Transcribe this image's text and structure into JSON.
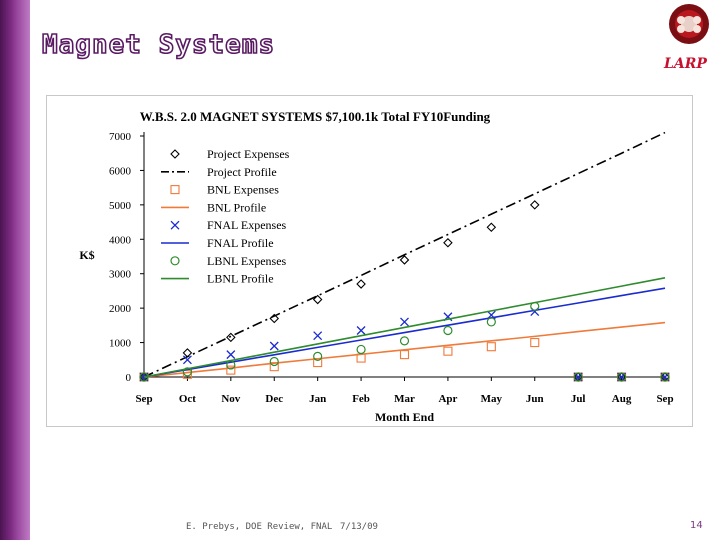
{
  "slide": {
    "title": "Magnet Systems",
    "logo_text": "LARP",
    "footer": {
      "author": "E. Prebys, DOE Review, FNAL",
      "date": "7/13/09",
      "page": "14"
    }
  },
  "chart_data": {
    "type": "line",
    "title": "W.B.S. 2.0 MAGNET SYSTEMS  $7,100.1k Total FY10Funding",
    "xlabel": "Month End",
    "ylabel": "K$",
    "categories": [
      "Sep",
      "Oct",
      "Nov",
      "Dec",
      "Jan",
      "Feb",
      "Mar",
      "Apr",
      "May",
      "Jun",
      "Jul",
      "Aug",
      "Sep"
    ],
    "ylim": [
      0,
      7000
    ],
    "yticks": [
      0,
      1000,
      2000,
      3000,
      4000,
      5000,
      6000,
      7000
    ],
    "series": [
      {
        "name": "Project Expenses",
        "kind": "points",
        "marker": "diamond",
        "color": "#000000",
        "values": [
          0,
          700,
          1150,
          1700,
          2250,
          2700,
          3400,
          3900,
          4350,
          5000,
          0,
          0,
          0
        ]
      },
      {
        "name": "Project Profile",
        "kind": "line",
        "dash": "dashdot",
        "color": "#000000",
        "values": [
          0,
          590,
          1180,
          1770,
          2360,
          2950,
          3550,
          4140,
          4730,
          5320,
          5910,
          6500,
          7100
        ]
      },
      {
        "name": "BNL Expenses",
        "kind": "points",
        "marker": "square",
        "color": "#f07a3a",
        "values": [
          0,
          80,
          200,
          300,
          420,
          550,
          650,
          750,
          880,
          1000,
          0,
          0,
          0
        ]
      },
      {
        "name": "BNL Profile",
        "kind": "line",
        "dash": "solid",
        "color": "#f07a3a",
        "values": [
          0,
          130,
          260,
          400,
          530,
          660,
          790,
          920,
          1050,
          1180,
          1320,
          1450,
          1580
        ]
      },
      {
        "name": "FNAL Expenses",
        "kind": "points",
        "marker": "x",
        "color": "#1a2bd0",
        "values": [
          0,
          500,
          650,
          900,
          1200,
          1350,
          1600,
          1750,
          1800,
          1900,
          0,
          0,
          0
        ]
      },
      {
        "name": "FNAL Profile",
        "kind": "line",
        "dash": "solid",
        "color": "#1a2bd0",
        "values": [
          0,
          215,
          430,
          645,
          860,
          1075,
          1290,
          1505,
          1720,
          1935,
          2150,
          2365,
          2580
        ]
      },
      {
        "name": "LBNL Expenses",
        "kind": "points",
        "marker": "circle",
        "color": "#2e8b2e",
        "values": [
          0,
          150,
          350,
          450,
          600,
          800,
          1050,
          1350,
          1600,
          2050,
          0,
          0,
          0
        ]
      },
      {
        "name": "LBNL Profile",
        "kind": "line",
        "dash": "solid",
        "color": "#2e8b2e",
        "values": [
          0,
          240,
          480,
          720,
          960,
          1200,
          1440,
          1680,
          1920,
          2160,
          2400,
          2640,
          2880
        ]
      }
    ]
  }
}
